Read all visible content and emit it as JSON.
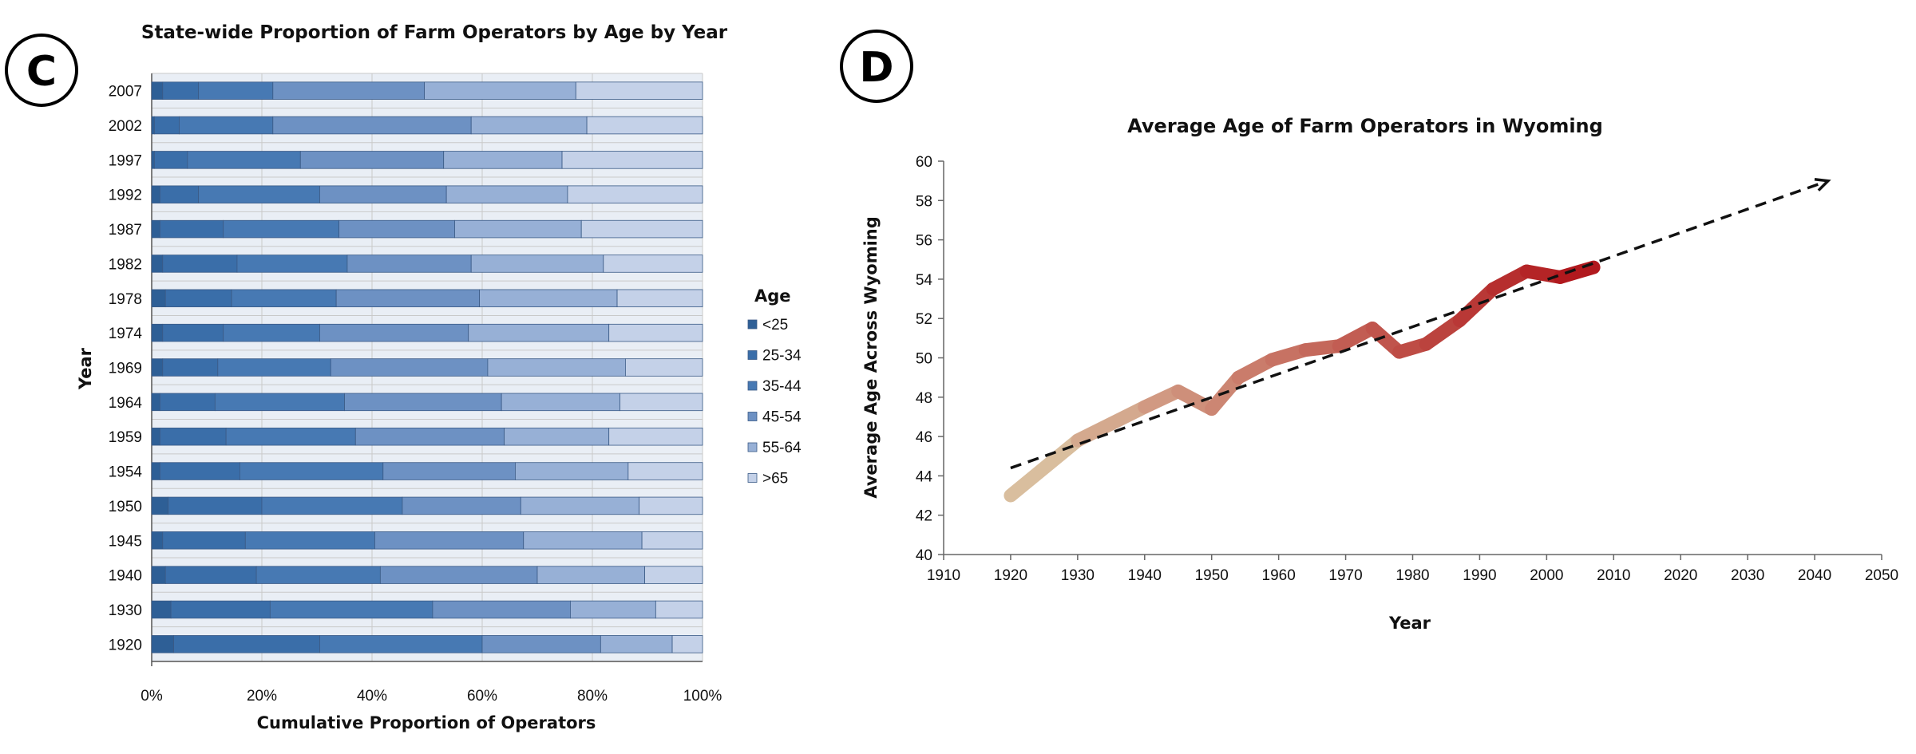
{
  "panels": {
    "left_letter": "C",
    "right_letter": "D"
  },
  "chart_data": [
    {
      "type": "bar",
      "orientation": "horizontal",
      "stacked": true,
      "title": "State-wide Proportion of Farm Operators by Age by Year",
      "xlabel": "Cumulative Proportion of Operators",
      "ylabel": "Year",
      "xlim": [
        0,
        100
      ],
      "x_ticks": [
        "0%",
        "20%",
        "40%",
        "60%",
        "80%",
        "100%"
      ],
      "x_tick_values": [
        0,
        20,
        40,
        60,
        80,
        100
      ],
      "grid": true,
      "legend_title": "Age",
      "legend_position": "right",
      "categories": [
        "2007",
        "2002",
        "1997",
        "1992",
        "1987",
        "1982",
        "1978",
        "1974",
        "1969",
        "1964",
        "1959",
        "1954",
        "1950",
        "1945",
        "1940",
        "1930",
        "1920"
      ],
      "series": [
        {
          "name": "<25",
          "color": "#2e5f96",
          "values": [
            2.0,
            0.5,
            0.5,
            1.5,
            1.5,
            2.0,
            2.5,
            2.0,
            2.0,
            1.5,
            1.5,
            1.5,
            3.0,
            2.0,
            2.5,
            3.5,
            4.0
          ]
        },
        {
          "name": "25-34",
          "color": "#3a6ea9",
          "values": [
            6.5,
            4.5,
            6.0,
            7.0,
            11.5,
            13.5,
            12.0,
            11.0,
            10.0,
            10.0,
            12.0,
            14.5,
            17.0,
            15.0,
            16.5,
            18.0,
            26.5
          ]
        },
        {
          "name": "35-44",
          "color": "#4779b3",
          "values": [
            13.5,
            17.0,
            20.5,
            22.0,
            21.0,
            20.0,
            19.0,
            17.5,
            20.5,
            23.5,
            23.5,
            26.0,
            25.5,
            23.5,
            22.5,
            29.5,
            29.5
          ]
        },
        {
          "name": "45-54",
          "color": "#6d91c3",
          "values": [
            27.5,
            36.0,
            26.0,
            23.0,
            21.0,
            22.5,
            26.0,
            27.0,
            28.5,
            28.5,
            27.0,
            24.0,
            21.5,
            27.0,
            28.5,
            25.0,
            21.5
          ]
        },
        {
          "name": "55-64",
          "color": "#97b0d6",
          "values": [
            27.5,
            21.0,
            21.5,
            22.0,
            23.0,
            24.0,
            25.0,
            25.5,
            25.0,
            21.5,
            19.0,
            20.5,
            21.5,
            21.5,
            19.5,
            15.5,
            13.0
          ]
        },
        {
          "name": ">65",
          "color": "#c4d1e8",
          "values": [
            23.0,
            21.0,
            25.5,
            24.5,
            22.0,
            18.0,
            15.5,
            17.0,
            14.0,
            15.0,
            17.0,
            13.5,
            11.5,
            11.0,
            10.5,
            8.5,
            5.5
          ]
        }
      ]
    },
    {
      "type": "line",
      "title": "Average Age of Farm Operators in Wyoming",
      "xlabel": "Year",
      "ylabel": "Average Age Across Wyoming",
      "xlim": [
        1910,
        2050
      ],
      "ylim": [
        40,
        60
      ],
      "x_ticks": [
        "1910",
        "1920",
        "1930",
        "1940",
        "1950",
        "1960",
        "1970",
        "1980",
        "1990",
        "2000",
        "2010",
        "2020",
        "2030",
        "2040",
        "2050"
      ],
      "x_tick_values": [
        1910,
        1920,
        1930,
        1940,
        1950,
        1960,
        1970,
        1980,
        1990,
        2000,
        2010,
        2020,
        2030,
        2040,
        2050
      ],
      "y_ticks": [
        "40",
        "42",
        "44",
        "46",
        "48",
        "50",
        "52",
        "54",
        "56",
        "58",
        "60"
      ],
      "y_tick_values": [
        40,
        42,
        44,
        46,
        48,
        50,
        52,
        54,
        56,
        58,
        60
      ],
      "grid": false,
      "color_start": "#dcc8a6",
      "color_end": "#b0141a",
      "trend_color": "#111111",
      "series": [
        {
          "x": [
            1920,
            1930,
            1940,
            1945,
            1950,
            1954,
            1959,
            1964,
            1969,
            1974,
            1978,
            1982,
            1987,
            1992,
            1997,
            2002,
            2007
          ],
          "y": [
            43.0,
            45.8,
            47.5,
            48.3,
            47.4,
            49.0,
            49.9,
            50.4,
            50.6,
            51.5,
            50.3,
            50.7,
            51.9,
            53.5,
            54.4,
            54.1,
            54.6
          ]
        }
      ],
      "trend": {
        "x": [
          1920,
          2042
        ],
        "y": [
          44.4,
          59.0
        ]
      }
    }
  ]
}
